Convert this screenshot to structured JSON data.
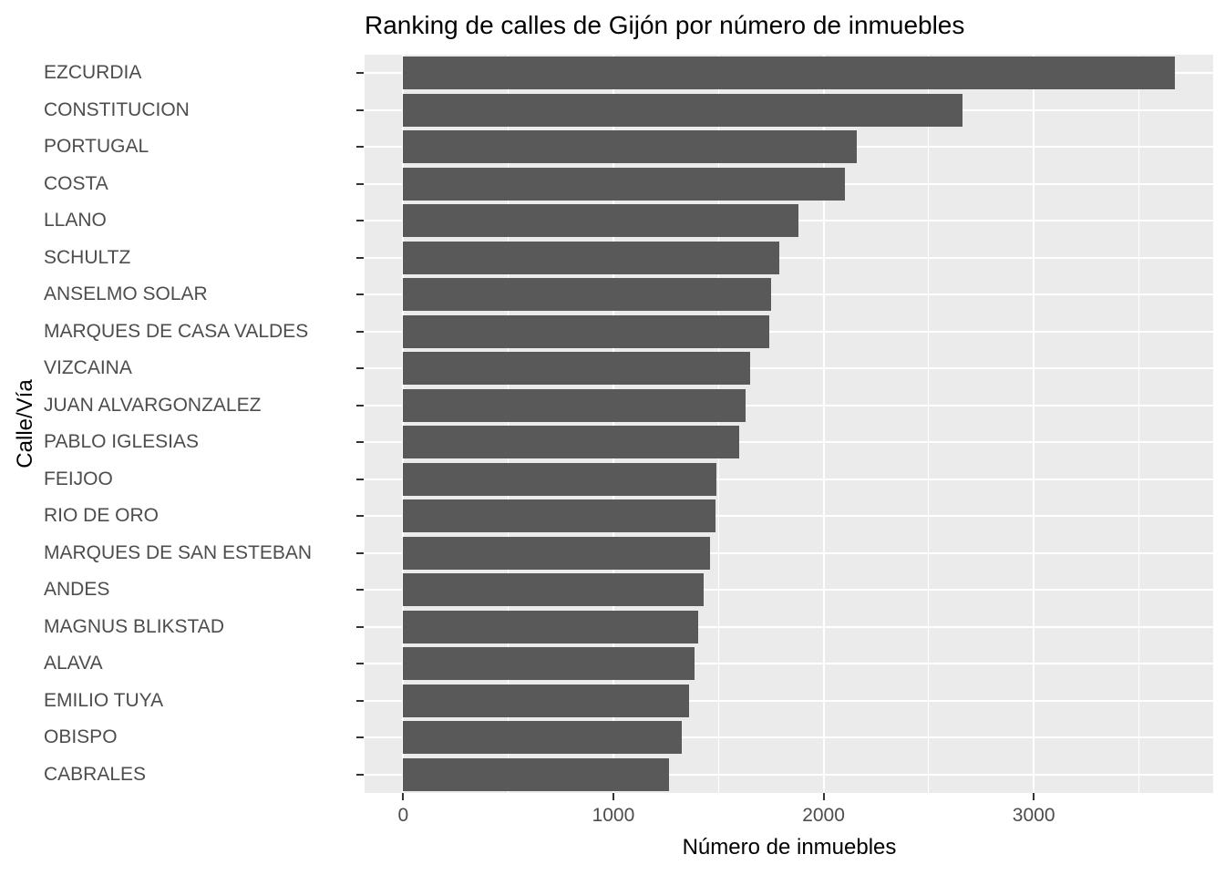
{
  "chart_data": {
    "type": "bar",
    "orientation": "horizontal",
    "title": "Ranking de calles de Gijón por número de inmuebles",
    "xlabel": "Número de inmuebles",
    "ylabel": "Calle/Vía",
    "categories": [
      "EZCURDIA",
      "CONSTITUCION",
      "PORTUGAL",
      "COSTA",
      "LLANO",
      "SCHULTZ",
      "ANSELMO SOLAR",
      "MARQUES DE CASA VALDES",
      "VIZCAINA",
      "JUAN ALVARGONZALEZ",
      "PABLO IGLESIAS",
      "FEIJOO",
      "RIO DE ORO",
      "MARQUES DE SAN ESTEBAN",
      "ANDES",
      "MAGNUS BLIKSTAD",
      "ALAVA",
      "EMILIO TUYA",
      "OBISPO",
      "CABRALES"
    ],
    "values": [
      3670,
      2660,
      2160,
      2100,
      1880,
      1790,
      1750,
      1740,
      1650,
      1630,
      1600,
      1490,
      1485,
      1460,
      1430,
      1405,
      1385,
      1360,
      1325,
      1265
    ],
    "x_ticks": [
      0,
      1000,
      2000,
      3000
    ],
    "x_tick_labels": [
      "0",
      "1000",
      "2000",
      "3000"
    ],
    "x_minor_ticks": [
      500,
      1500,
      2500,
      3500
    ],
    "xlim_expand_mult": 0.05,
    "grid": true,
    "legend": "none",
    "colors": {
      "bar": "#595959",
      "panel_bg": "#EBEBEB",
      "grid": "#FFFFFF",
      "axis_text": "#4D4D4D",
      "tick_mark": "#333333",
      "title_text": "#000000"
    }
  }
}
